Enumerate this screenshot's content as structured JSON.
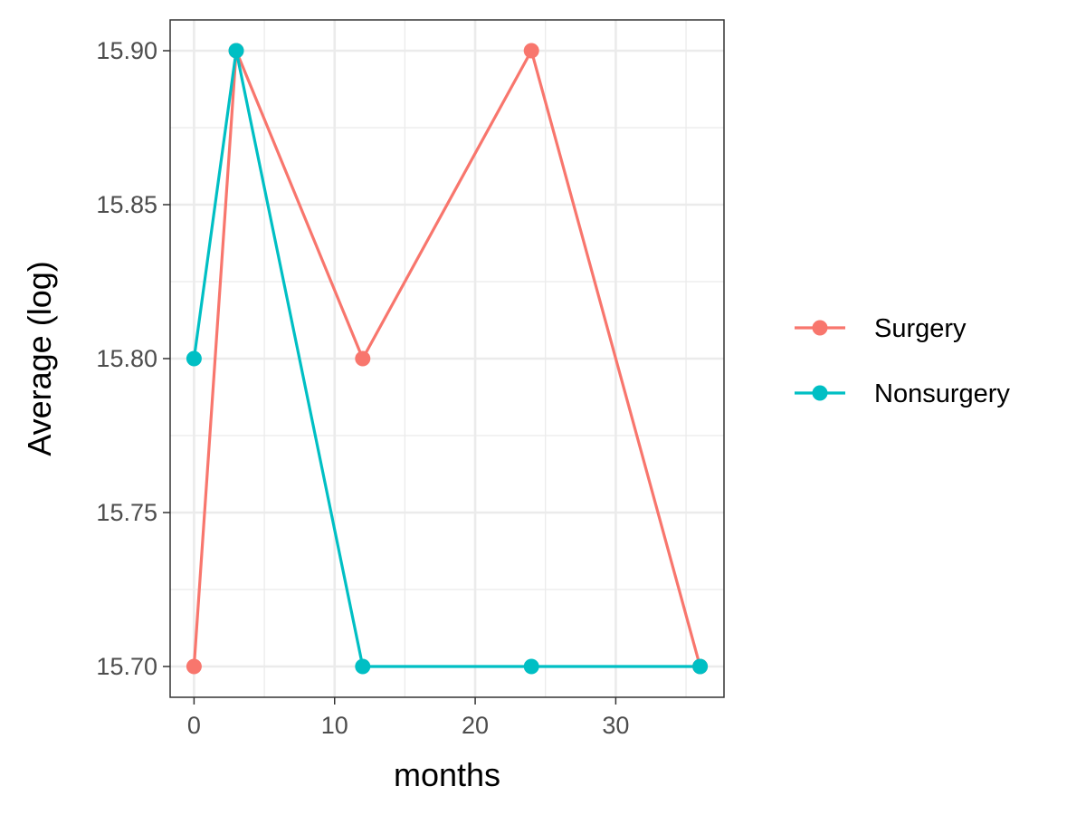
{
  "chart_data": {
    "type": "line",
    "xlabel": "months",
    "ylabel": "Average (log)",
    "xlim": [
      -1.7,
      37.7
    ],
    "ylim": [
      15.69,
      15.91
    ],
    "x_ticks": [
      0,
      10,
      20,
      30
    ],
    "x_minor_ticks": [
      5,
      15,
      25,
      35
    ],
    "y_ticks": [
      15.7,
      15.75,
      15.8,
      15.85,
      15.9
    ],
    "y_tick_labels": [
      "15.70",
      "15.75",
      "15.80",
      "15.85",
      "15.90"
    ],
    "x_tick_labels": [
      "0",
      "10",
      "20",
      "30"
    ],
    "grid": true,
    "legend_position": "right",
    "series": [
      {
        "name": "Surgery",
        "color": "#F8766D",
        "x": [
          0,
          3,
          12,
          24,
          36
        ],
        "y": [
          15.7,
          15.9,
          15.8,
          15.9,
          15.7
        ]
      },
      {
        "name": "Nonsurgery",
        "color": "#00BFC4",
        "x": [
          0,
          3,
          12,
          24,
          36
        ],
        "y": [
          15.8,
          15.9,
          15.7,
          15.7,
          15.7
        ]
      }
    ]
  }
}
